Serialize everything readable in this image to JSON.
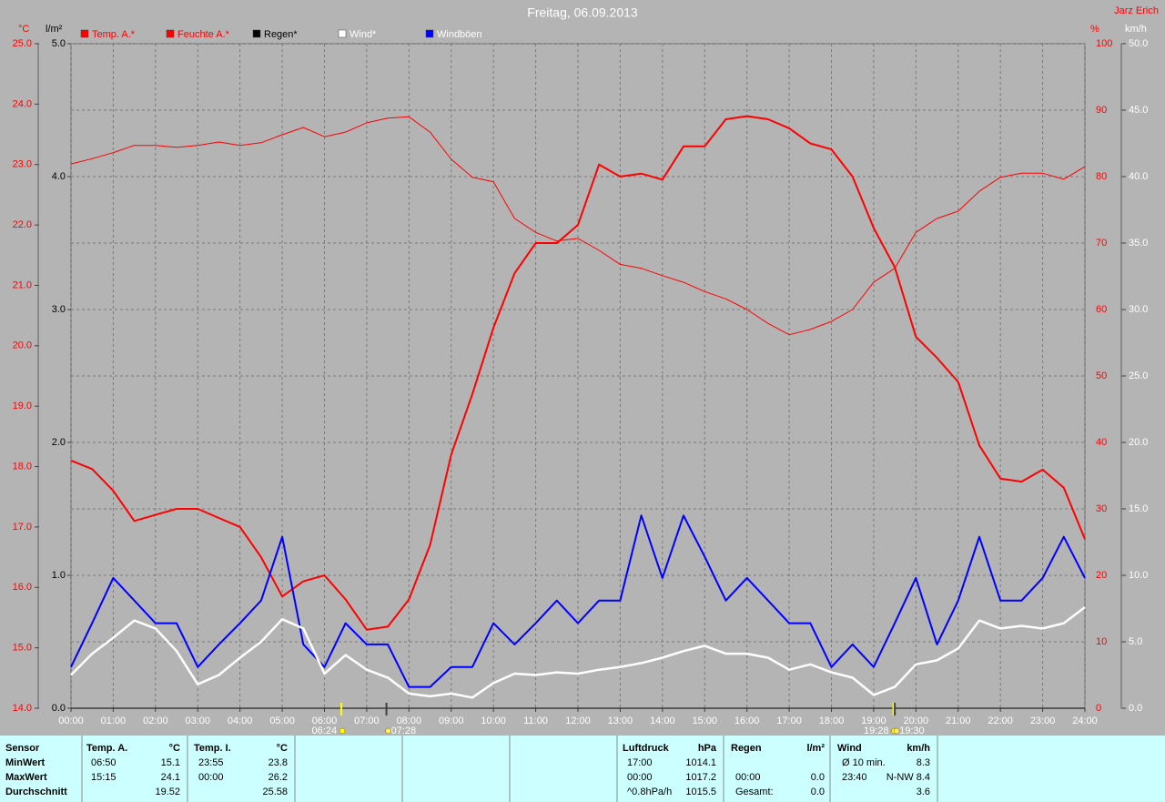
{
  "chart_data": {
    "type": "line",
    "title": "Freitag, 06.09.2013",
    "author": "Jarz Erich",
    "axis_labels": {
      "y": "°C",
      "y2": "l/m²",
      "y3": "%",
      "y4": "km/h"
    },
    "x": [
      0,
      0.5,
      1,
      1.5,
      2,
      2.5,
      3,
      3.5,
      4,
      4.5,
      5,
      5.5,
      6,
      6.5,
      7,
      7.5,
      8,
      8.5,
      9,
      9.5,
      10,
      10.5,
      11,
      11.5,
      12,
      12.5,
      13,
      13.5,
      14,
      14.5,
      15,
      15.5,
      16,
      16.5,
      17,
      17.5,
      18,
      18.5,
      19,
      19.5,
      20,
      20.5,
      21,
      21.5,
      22,
      22.5,
      23,
      23.5,
      24
    ],
    "xlim": [
      0,
      24
    ],
    "xticks": [
      {
        "value": 0,
        "label": "00:00"
      },
      {
        "value": 1,
        "label": "01:00"
      },
      {
        "value": 2,
        "label": "02:00"
      },
      {
        "value": 3,
        "label": "03:00"
      },
      {
        "value": 4,
        "label": "04:00"
      },
      {
        "value": 5,
        "label": "05:00"
      },
      {
        "value": 6,
        "label": "06:00"
      },
      {
        "value": 7,
        "label": "07:00"
      },
      {
        "value": 8,
        "label": "08:00"
      },
      {
        "value": 9,
        "label": "09:00"
      },
      {
        "value": 10,
        "label": "10:00"
      },
      {
        "value": 11,
        "label": "11:00"
      },
      {
        "value": 12,
        "label": "12:00"
      },
      {
        "value": 13,
        "label": "13:00"
      },
      {
        "value": 14,
        "label": "14:00"
      },
      {
        "value": 15,
        "label": "15:00"
      },
      {
        "value": 16,
        "label": "16:00"
      },
      {
        "value": 17,
        "label": "17:00"
      },
      {
        "value": 18,
        "label": "18:00"
      },
      {
        "value": 19,
        "label": "19:00"
      },
      {
        "value": 20,
        "label": "20:00"
      },
      {
        "value": 21,
        "label": "21:00"
      },
      {
        "value": 22,
        "label": "22:00"
      },
      {
        "value": 23,
        "label": "23:00"
      },
      {
        "value": 24,
        "label": "24:00"
      }
    ],
    "ylim": [
      14,
      25
    ],
    "yticks": [
      {
        "value": 14,
        "label": "14.0"
      },
      {
        "value": 15,
        "label": "15.0"
      },
      {
        "value": 16,
        "label": "16.0"
      },
      {
        "value": 17,
        "label": "17.0"
      },
      {
        "value": 18,
        "label": "18.0"
      },
      {
        "value": 19,
        "label": "19.0"
      },
      {
        "value": 20,
        "label": "20.0"
      },
      {
        "value": 21,
        "label": "21.0"
      },
      {
        "value": 22,
        "label": "22.0"
      },
      {
        "value": 23,
        "label": "23.0"
      },
      {
        "value": 24,
        "label": "24.0"
      },
      {
        "value": 25,
        "label": "25.0"
      }
    ],
    "y2lim": [
      0,
      5
    ],
    "y2ticks": [
      {
        "value": 0,
        "label": "0.0"
      },
      {
        "value": 1,
        "label": "1.0"
      },
      {
        "value": 2,
        "label": "2.0"
      },
      {
        "value": 3,
        "label": "3.0"
      },
      {
        "value": 4,
        "label": "4.0"
      },
      {
        "value": 5,
        "label": "5.0"
      }
    ],
    "y3lim": [
      0,
      100
    ],
    "y3ticks": [
      0,
      10,
      20,
      30,
      40,
      50,
      60,
      70,
      80,
      90,
      100
    ],
    "y4lim": [
      0,
      50
    ],
    "y4ticks": [
      {
        "value": 0,
        "label": "0.0"
      },
      {
        "value": 5,
        "label": "5.0"
      },
      {
        "value": 10,
        "label": "10.0"
      },
      {
        "value": 15,
        "label": "15.0"
      },
      {
        "value": 20,
        "label": "20.0"
      },
      {
        "value": 25,
        "label": "25.0"
      },
      {
        "value": 30,
        "label": "30.0"
      },
      {
        "value": 35,
        "label": "35.0"
      },
      {
        "value": 40,
        "label": "40.0"
      },
      {
        "value": 45,
        "label": "45.0"
      },
      {
        "value": 50,
        "label": "50.0"
      }
    ],
    "grid": true,
    "series": [
      {
        "name": "Temp. A.*",
        "color": "#ff0000",
        "line_width": 2,
        "axis": "y",
        "values": [
          18.1,
          17.96,
          17.6,
          17.1,
          17.2,
          17.3,
          17.3,
          17.15,
          17.0,
          16.5,
          15.85,
          16.1,
          16.2,
          15.8,
          15.3,
          15.35,
          15.8,
          16.7,
          18.2,
          19.2,
          20.3,
          21.2,
          21.7,
          21.7,
          22.0,
          23.0,
          22.8,
          22.85,
          22.75,
          23.3,
          23.3,
          23.75,
          23.8,
          23.75,
          23.6,
          23.35,
          23.25,
          22.8,
          21.95,
          21.3,
          20.15,
          19.8,
          19.4,
          18.35,
          17.8,
          17.75,
          17.95,
          17.65,
          16.8
        ]
      },
      {
        "name": "Feuchte A.*",
        "color": "#ff0000",
        "line_width": 1,
        "axis": "y3",
        "values": [
          81.9,
          82.7,
          83.6,
          84.7,
          84.7,
          84.4,
          84.7,
          85.2,
          84.7,
          85.1,
          86.3,
          87.4,
          86.0,
          86.7,
          88.1,
          88.8,
          89.0,
          86.7,
          82.6,
          79.9,
          79.2,
          73.7,
          71.6,
          70.3,
          70.7,
          68.9,
          66.8,
          66.2,
          65.1,
          64.1,
          62.7,
          61.6,
          60.0,
          57.9,
          56.2,
          57.0,
          58.2,
          60.0,
          64.1,
          66.2,
          71.6,
          73.7,
          74.8,
          77.8,
          79.9,
          80.5,
          80.5,
          79.6,
          81.5
        ]
      },
      {
        "name": "Regen*",
        "color": "#000000",
        "line_width": 1,
        "axis": "y2",
        "values": [
          0,
          0,
          0,
          0,
          0,
          0,
          0,
          0,
          0,
          0,
          0,
          0,
          0,
          0,
          0,
          0,
          0,
          0,
          0,
          0,
          0,
          0,
          0,
          0,
          0,
          0,
          0,
          0,
          0,
          0,
          0,
          0,
          0,
          0,
          0,
          0,
          0,
          0,
          0,
          0,
          0,
          0,
          0,
          0,
          0,
          0,
          0,
          0,
          0
        ]
      },
      {
        "name": "Wind*",
        "color": "#ffffff",
        "line_width": 2.5,
        "axis": "y4",
        "values": [
          2.5,
          4.1,
          5.3,
          6.6,
          6.0,
          4.3,
          1.8,
          2.5,
          3.8,
          5.0,
          6.7,
          6.0,
          2.6,
          4.0,
          2.9,
          2.3,
          1.1,
          0.9,
          1.1,
          0.8,
          1.9,
          2.6,
          2.5,
          2.7,
          2.6,
          2.9,
          3.1,
          3.4,
          3.8,
          4.3,
          4.7,
          4.1,
          4.1,
          3.8,
          2.9,
          3.3,
          2.7,
          2.3,
          1.0,
          1.6,
          3.3,
          3.6,
          4.5,
          6.6,
          6.0,
          6.2,
          6.0,
          6.4,
          7.6
        ]
      },
      {
        "name": "Windböen",
        "color": "#0000ff",
        "line_width": 2,
        "axis": "y4",
        "values": [
          3.1,
          6.4,
          9.8,
          8.1,
          6.4,
          6.4,
          3.1,
          4.8,
          6.4,
          8.1,
          12.9,
          4.8,
          3.1,
          6.4,
          4.8,
          4.8,
          1.6,
          1.6,
          3.1,
          3.1,
          6.4,
          4.8,
          6.4,
          8.1,
          6.4,
          8.1,
          8.1,
          14.5,
          9.8,
          14.5,
          11.4,
          8.1,
          9.8,
          8.1,
          6.4,
          6.4,
          3.1,
          4.8,
          3.1,
          6.4,
          9.8,
          4.8,
          8.1,
          12.9,
          8.1,
          8.1,
          9.8,
          12.9,
          9.8
        ]
      }
    ],
    "events": [
      {
        "x": 6.4,
        "label": "06:24",
        "color": "#ffff00"
      },
      {
        "x": 7.4667,
        "label": "07:28",
        "color": "#404040"
      },
      {
        "x": 19.4667,
        "label": "19:28",
        "color": "#ffff00"
      },
      {
        "x": 19.5,
        "label": "19:30",
        "color": "#404040"
      }
    ]
  },
  "stats": {
    "row_labels": [
      "Sensor",
      "MinWert",
      "MaxWert",
      "Durchschnitt"
    ],
    "columns": [
      {
        "name": "Temp. A.",
        "unit": "°C",
        "rows": [
          {
            "time": "06:50",
            "value": "15.1"
          },
          {
            "time": "15:15",
            "value": "24.1"
          },
          {
            "value": "19.52"
          }
        ]
      },
      {
        "name": "Temp. I.",
        "unit": "°C",
        "rows": [
          {
            "time": "23:55",
            "value": "23.8"
          },
          {
            "time": "00:00",
            "value": "26.2"
          },
          {
            "value": "25.58"
          }
        ]
      },
      {
        "name": "Luftdruck",
        "unit": "hPa",
        "rows": [
          {
            "time": "17:00",
            "value": "1014.1"
          },
          {
            "time": "00:00",
            "value": "1017.2"
          },
          {
            "time": "^0.8hPa/h",
            "value": "1015.5"
          }
        ]
      },
      {
        "name": "Regen",
        "unit": "l/m²",
        "rows": [
          {},
          {
            "time": "00:00",
            "value": "0.0"
          },
          {
            "time": "Gesamt:",
            "value": "0.0"
          }
        ]
      },
      {
        "name": "Wind",
        "unit": "km/h",
        "rows": [
          {
            "time": "Ø 10 min.",
            "value": "8.3"
          },
          {
            "time": "23:40",
            "value": "N-NW 8.4"
          },
          {
            "value": "3.6"
          }
        ]
      }
    ]
  }
}
